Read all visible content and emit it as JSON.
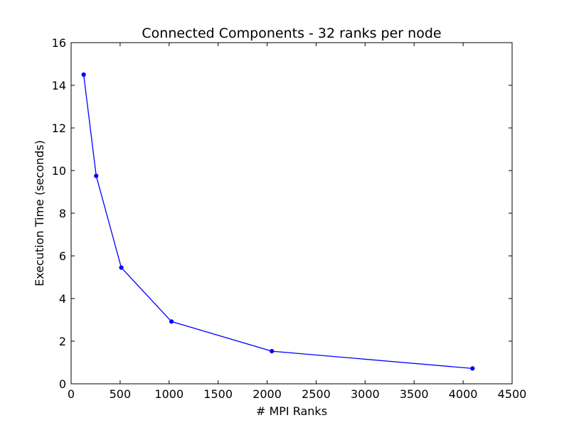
{
  "chart_data": {
    "type": "line",
    "title": "Connected Components - 32 ranks per node",
    "xlabel": "# MPI Ranks",
    "ylabel": "Execution Time (seconds)",
    "xlim": [
      0,
      4500
    ],
    "ylim": [
      0,
      16
    ],
    "xticks": [
      0,
      500,
      1000,
      1500,
      2000,
      2500,
      3000,
      3500,
      4000,
      4500
    ],
    "yticks": [
      0,
      2,
      4,
      6,
      8,
      10,
      12,
      14,
      16
    ],
    "grid": false,
    "legend": "none",
    "series": [
      {
        "name": "Execution Time",
        "color": "#0000ff",
        "x": [
          128,
          256,
          512,
          1024,
          2048,
          4096
        ],
        "y": [
          14.5,
          9.75,
          5.45,
          2.92,
          1.53,
          0.72
        ]
      }
    ]
  }
}
